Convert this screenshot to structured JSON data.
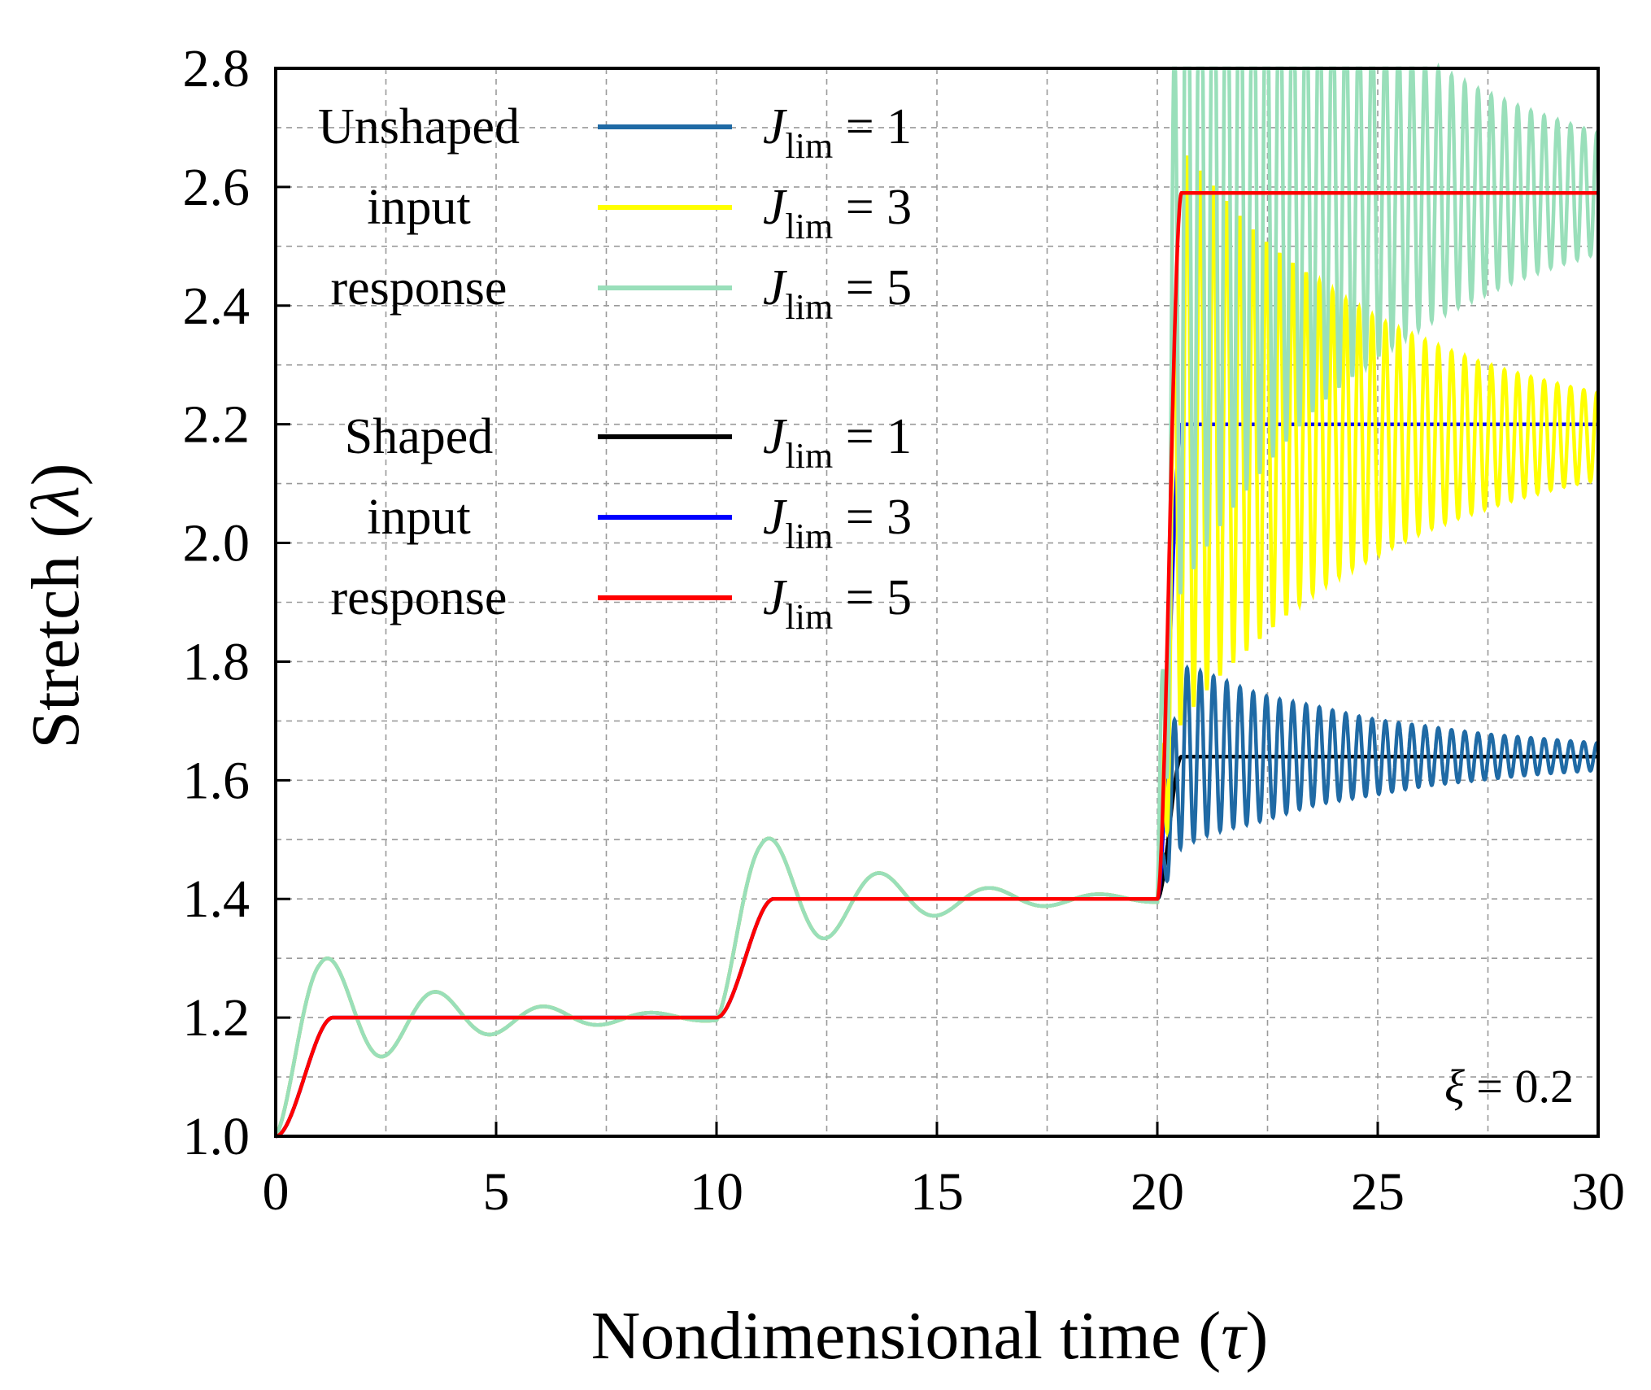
{
  "chart_data": {
    "type": "line",
    "title": "",
    "xlabel": "Nondimensional time (",
    "xlabel_symbol": "τ",
    "xlabel_close": ")",
    "ylabel": "Stretch (",
    "ylabel_symbol": "λ",
    "ylabel_close": ")",
    "xlim": [
      0,
      30
    ],
    "ylim": [
      1.0,
      2.8
    ],
    "xticks": [
      0,
      5,
      10,
      15,
      20,
      25,
      30
    ],
    "xtick_labels": [
      "0",
      "5",
      "10",
      "15",
      "20",
      "25",
      "30"
    ],
    "yticks": [
      1.0,
      1.2,
      1.4,
      1.6,
      1.8,
      2.0,
      2.2,
      2.4,
      2.6,
      2.8
    ],
    "ytick_labels": [
      "1.0",
      "1.2",
      "1.4",
      "1.6",
      "1.8",
      "2.0",
      "2.2",
      "2.4",
      "2.6",
      "2.8"
    ],
    "grid": true,
    "annotation": {
      "symbol": "ξ",
      "text": " = 0.2"
    },
    "legend": {
      "placement": "top-left",
      "groups": [
        {
          "label_lines": [
            "Unshaped",
            "input",
            "response"
          ],
          "series_indices": [
            0,
            1,
            2
          ]
        },
        {
          "label_lines": [
            "Shaped",
            "input",
            "response"
          ],
          "series_indices": [
            3,
            4,
            5
          ]
        }
      ]
    },
    "steps": [
      {
        "t_start": 0,
        "from": 1.0,
        "to": 1.2
      },
      {
        "t_start": 10,
        "from": 1.2,
        "to": 1.4
      },
      {
        "t_start": 20,
        "from": 1.4,
        "to": 2.6
      }
    ],
    "series": [
      {
        "name": "J_lim = 1",
        "legend_italic": "J",
        "legend_sub": "lim",
        "legend_value": " = 1",
        "kind": "unshaped",
        "color": "#1f6aa5",
        "final": 1.64,
        "overshoot_first_step": 1.34,
        "freq": 2.55,
        "amplitude_step3": 0.17,
        "decay": 0.2
      },
      {
        "name": "J_lim = 3",
        "legend_italic": "J",
        "legend_sub": "lim",
        "legend_value": " = 3",
        "kind": "unshaped",
        "color": "#ffff00",
        "final": 2.18,
        "overshoot_first_step": 1.35,
        "freq": 2.3,
        "amplitude_step3": 0.54,
        "decay": 0.2
      },
      {
        "name": "J_lim = 5",
        "legend_italic": "J",
        "legend_sub": "lim",
        "legend_value": " = 5",
        "kind": "unshaped",
        "color": "#99dfba",
        "final": 2.59,
        "overshoot_first_step": 1.35,
        "freq": 2.25,
        "amplitude_step3": 0.75,
        "decay": 0.2
      },
      {
        "name": "J_lim = 1",
        "legend_italic": "J",
        "legend_sub": "lim",
        "legend_value": " = 1",
        "kind": "shaped",
        "color": "#000000",
        "final": 1.64,
        "ramp_time": 1.3
      },
      {
        "name": "J_lim = 3",
        "legend_italic": "J",
        "legend_sub": "lim",
        "legend_value": " = 3",
        "kind": "shaped",
        "color": "#0000ff",
        "final": 2.2,
        "ramp_time": 1.3
      },
      {
        "name": "J_lim = 5",
        "legend_italic": "J",
        "legend_sub": "lim",
        "legend_value": " = 5",
        "kind": "shaped",
        "color": "#ff0000",
        "final": 2.59,
        "ramp_time": 1.3
      }
    ],
    "colors": {
      "grid": "#9a9a9a",
      "axes": "#000000",
      "background": "#ffffff"
    }
  }
}
